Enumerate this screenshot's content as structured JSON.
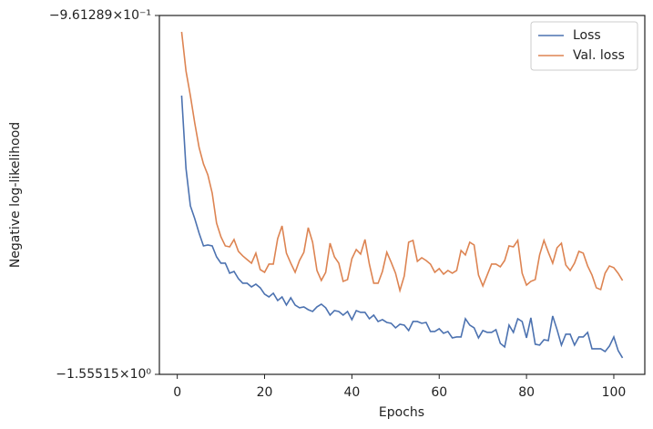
{
  "chart_data": {
    "type": "line",
    "xlabel": "Epochs",
    "ylabel": "Negative log-likelihood",
    "x": [
      1,
      2,
      3,
      4,
      5,
      6,
      7,
      8,
      9,
      10,
      11,
      12,
      13,
      14,
      15,
      16,
      17,
      18,
      19,
      20,
      21,
      22,
      23,
      24,
      25,
      26,
      27,
      28,
      29,
      30,
      31,
      32,
      33,
      34,
      35,
      36,
      37,
      38,
      39,
      40,
      41,
      42,
      43,
      44,
      45,
      46,
      47,
      48,
      49,
      50,
      51,
      52,
      53,
      54,
      55,
      56,
      57,
      58,
      59,
      60,
      61,
      62,
      63,
      64,
      65,
      66,
      67,
      68,
      69,
      70,
      71,
      72,
      73,
      74,
      75,
      76,
      77,
      78,
      79,
      80,
      81,
      82,
      83,
      84,
      85,
      86,
      87,
      88,
      89,
      90,
      91,
      92,
      93,
      94,
      95,
      96,
      97,
      98,
      99,
      100,
      101,
      102
    ],
    "series": [
      {
        "name": "Loss",
        "color": "#4c72b0",
        "values": [
          -1.0939,
          -1.2145,
          -1.2763,
          -1.2974,
          -1.3215,
          -1.3426,
          -1.3411,
          -1.3426,
          -1.3607,
          -1.3712,
          -1.3712,
          -1.3878,
          -1.3848,
          -1.3968,
          -1.4044,
          -1.4044,
          -1.4104,
          -1.4059,
          -1.4119,
          -1.4224,
          -1.427,
          -1.4209,
          -1.433,
          -1.427,
          -1.4405,
          -1.4285,
          -1.4405,
          -1.445,
          -1.4435,
          -1.4481,
          -1.4511,
          -1.4435,
          -1.439,
          -1.445,
          -1.4571,
          -1.4496,
          -1.4511,
          -1.4571,
          -1.4511,
          -1.4646,
          -1.4496,
          -1.4526,
          -1.4526,
          -1.4631,
          -1.4571,
          -1.4677,
          -1.4646,
          -1.4692,
          -1.4707,
          -1.4782,
          -1.4722,
          -1.4737,
          -1.4827,
          -1.4677,
          -1.4677,
          -1.4707,
          -1.4692,
          -1.4842,
          -1.4842,
          -1.4797,
          -1.4872,
          -1.4842,
          -1.4948,
          -1.4933,
          -1.4933,
          -1.4631,
          -1.4737,
          -1.4782,
          -1.4948,
          -1.4827,
          -1.4857,
          -1.4857,
          -1.4812,
          -1.5038,
          -1.5098,
          -1.4737,
          -1.4857,
          -1.4631,
          -1.4677,
          -1.4948,
          -1.4616,
          -1.5053,
          -1.5068,
          -1.4978,
          -1.4993,
          -1.4586,
          -1.4812,
          -1.5068,
          -1.4888,
          -1.4888,
          -1.5068,
          -1.4933,
          -1.4933,
          -1.4857,
          -1.5129,
          -1.5129,
          -1.5129,
          -1.5174,
          -1.5083,
          -1.4933,
          -1.5159,
          -1.5279
        ]
      },
      {
        "name": "Val. loss",
        "color": "#dd8452",
        "values": [
          -0.9884,
          -1.0532,
          -1.0939,
          -1.1391,
          -1.1798,
          -1.2069,
          -1.225,
          -1.2552,
          -1.3049,
          -1.3275,
          -1.3426,
          -1.3441,
          -1.332,
          -1.3516,
          -1.3591,
          -1.3652,
          -1.3712,
          -1.3546,
          -1.3818,
          -1.3863,
          -1.3727,
          -1.3727,
          -1.3305,
          -1.3094,
          -1.3546,
          -1.3712,
          -1.3863,
          -1.3667,
          -1.3531,
          -1.3124,
          -1.3365,
          -1.3833,
          -1.3998,
          -1.3863,
          -1.3381,
          -1.3607,
          -1.3712,
          -1.4013,
          -1.3983,
          -1.3637,
          -1.3486,
          -1.3561,
          -1.332,
          -1.3727,
          -1.4044,
          -1.4044,
          -1.3848,
          -1.3531,
          -1.3697,
          -1.3878,
          -1.4164,
          -1.3923,
          -1.3365,
          -1.3335,
          -1.3682,
          -1.3622,
          -1.3667,
          -1.3727,
          -1.3863,
          -1.3802,
          -1.3893,
          -1.3833,
          -1.3878,
          -1.3833,
          -1.3501,
          -1.3576,
          -1.3365,
          -1.3411,
          -1.3908,
          -1.4089,
          -1.3908,
          -1.3727,
          -1.3727,
          -1.3772,
          -1.3667,
          -1.3426,
          -1.3441,
          -1.3335,
          -1.3878,
          -1.4074,
          -1.4013,
          -1.3983,
          -1.3576,
          -1.3335,
          -1.3531,
          -1.3712,
          -1.3456,
          -1.3381,
          -1.3742,
          -1.3833,
          -1.3712,
          -1.3516,
          -1.3546,
          -1.3757,
          -1.3908,
          -1.4119,
          -1.4149,
          -1.3878,
          -1.3757,
          -1.3787,
          -1.388,
          -1.3998
        ]
      }
    ],
    "xlim": [
      -4.1,
      107.1
    ],
    "xticks": [
      0,
      20,
      40,
      60,
      80,
      100
    ],
    "ylim": [
      -1.55515,
      -0.961289
    ],
    "yticks": [
      {
        "value": -1.55515,
        "label": "−1.55515×10⁰"
      },
      {
        "value": -0.961289,
        "label": "−9.61289×10⁻¹"
      }
    ],
    "legend": "upper right"
  }
}
